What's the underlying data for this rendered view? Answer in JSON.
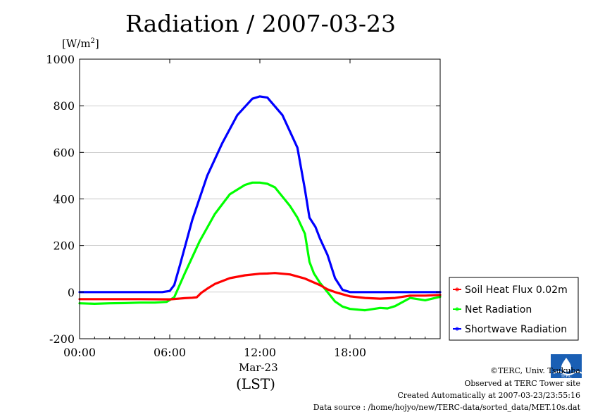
{
  "chart_data": {
    "type": "line",
    "title": "Radiation / 2007-03-23",
    "ylabel": "[W/m2]",
    "xlabel": "(LST)",
    "date_label": "Mar-23",
    "ylim": [
      -200,
      1000
    ],
    "xlim": [
      0,
      24
    ],
    "yticks": [
      "1000",
      "800",
      "600",
      "400",
      "200",
      "0",
      "-200"
    ],
    "xticks": [
      "00:00",
      "06:00",
      "12:00",
      "18:00"
    ],
    "grid": true,
    "legend_position": "right, outside plot",
    "series": [
      {
        "name": "Soil Heat Flux 0.02m",
        "color": "#ff0000",
        "x": [
          0,
          2,
          4,
          6,
          7,
          7.5,
          7.8,
          8.1,
          8.5,
          9,
          10,
          11,
          12,
          12.5,
          13,
          14,
          15,
          16,
          16.5,
          17,
          18,
          19,
          20,
          21,
          22,
          23,
          24
        ],
        "y": [
          -30,
          -30,
          -30,
          -31,
          -26,
          -24,
          -22,
          -3,
          15,
          35,
          60,
          72,
          79,
          80,
          82,
          76,
          58,
          30,
          12,
          0,
          -18,
          -25,
          -28,
          -25,
          -15,
          -15,
          -12
        ]
      },
      {
        "name": "Net Radiation",
        "color": "#00ff00",
        "x": [
          0,
          1,
          2,
          3,
          4,
          5,
          5.8,
          6.3,
          7,
          8,
          9,
          10,
          11,
          11.5,
          12,
          12.5,
          13,
          14,
          14.5,
          15,
          15.3,
          15.6,
          16,
          16.5,
          17,
          17.5,
          18,
          19,
          20,
          20.5,
          21,
          22,
          23,
          24
        ],
        "y": [
          -48,
          -50,
          -48,
          -47,
          -45,
          -45,
          -42,
          -22,
          80,
          220,
          335,
          420,
          460,
          470,
          470,
          465,
          450,
          370,
          320,
          250,
          130,
          80,
          40,
          0,
          -40,
          -62,
          -72,
          -78,
          -68,
          -70,
          -60,
          -25,
          -35,
          -20
        ]
      },
      {
        "name": "Shortwave Radiation",
        "color": "#0000ff",
        "x": [
          0,
          2,
          4,
          5.5,
          6,
          6.3,
          6.7,
          7.5,
          8.5,
          9.5,
          10.5,
          11.5,
          12,
          12.5,
          13.5,
          14.5,
          15,
          15.3,
          15.7,
          16,
          16.5,
          17,
          17.5,
          18,
          19,
          20,
          22,
          24
        ],
        "y": [
          0,
          0,
          0,
          0,
          5,
          30,
          120,
          310,
          500,
          640,
          760,
          830,
          840,
          835,
          760,
          620,
          440,
          320,
          280,
          230,
          160,
          60,
          10,
          0,
          0,
          0,
          0,
          0
        ]
      }
    ]
  },
  "credits": {
    "copyright": "©TERC, Univ. Tsukuba",
    "observed": "Observed at TERC Tower site",
    "created": "Created Automatically at 2007-03-23/23:55:16",
    "source": "Data source : /home/hojyo/new/TERC-data/sorted_data/MET.10s.dat",
    "logo_text": "TERC"
  }
}
